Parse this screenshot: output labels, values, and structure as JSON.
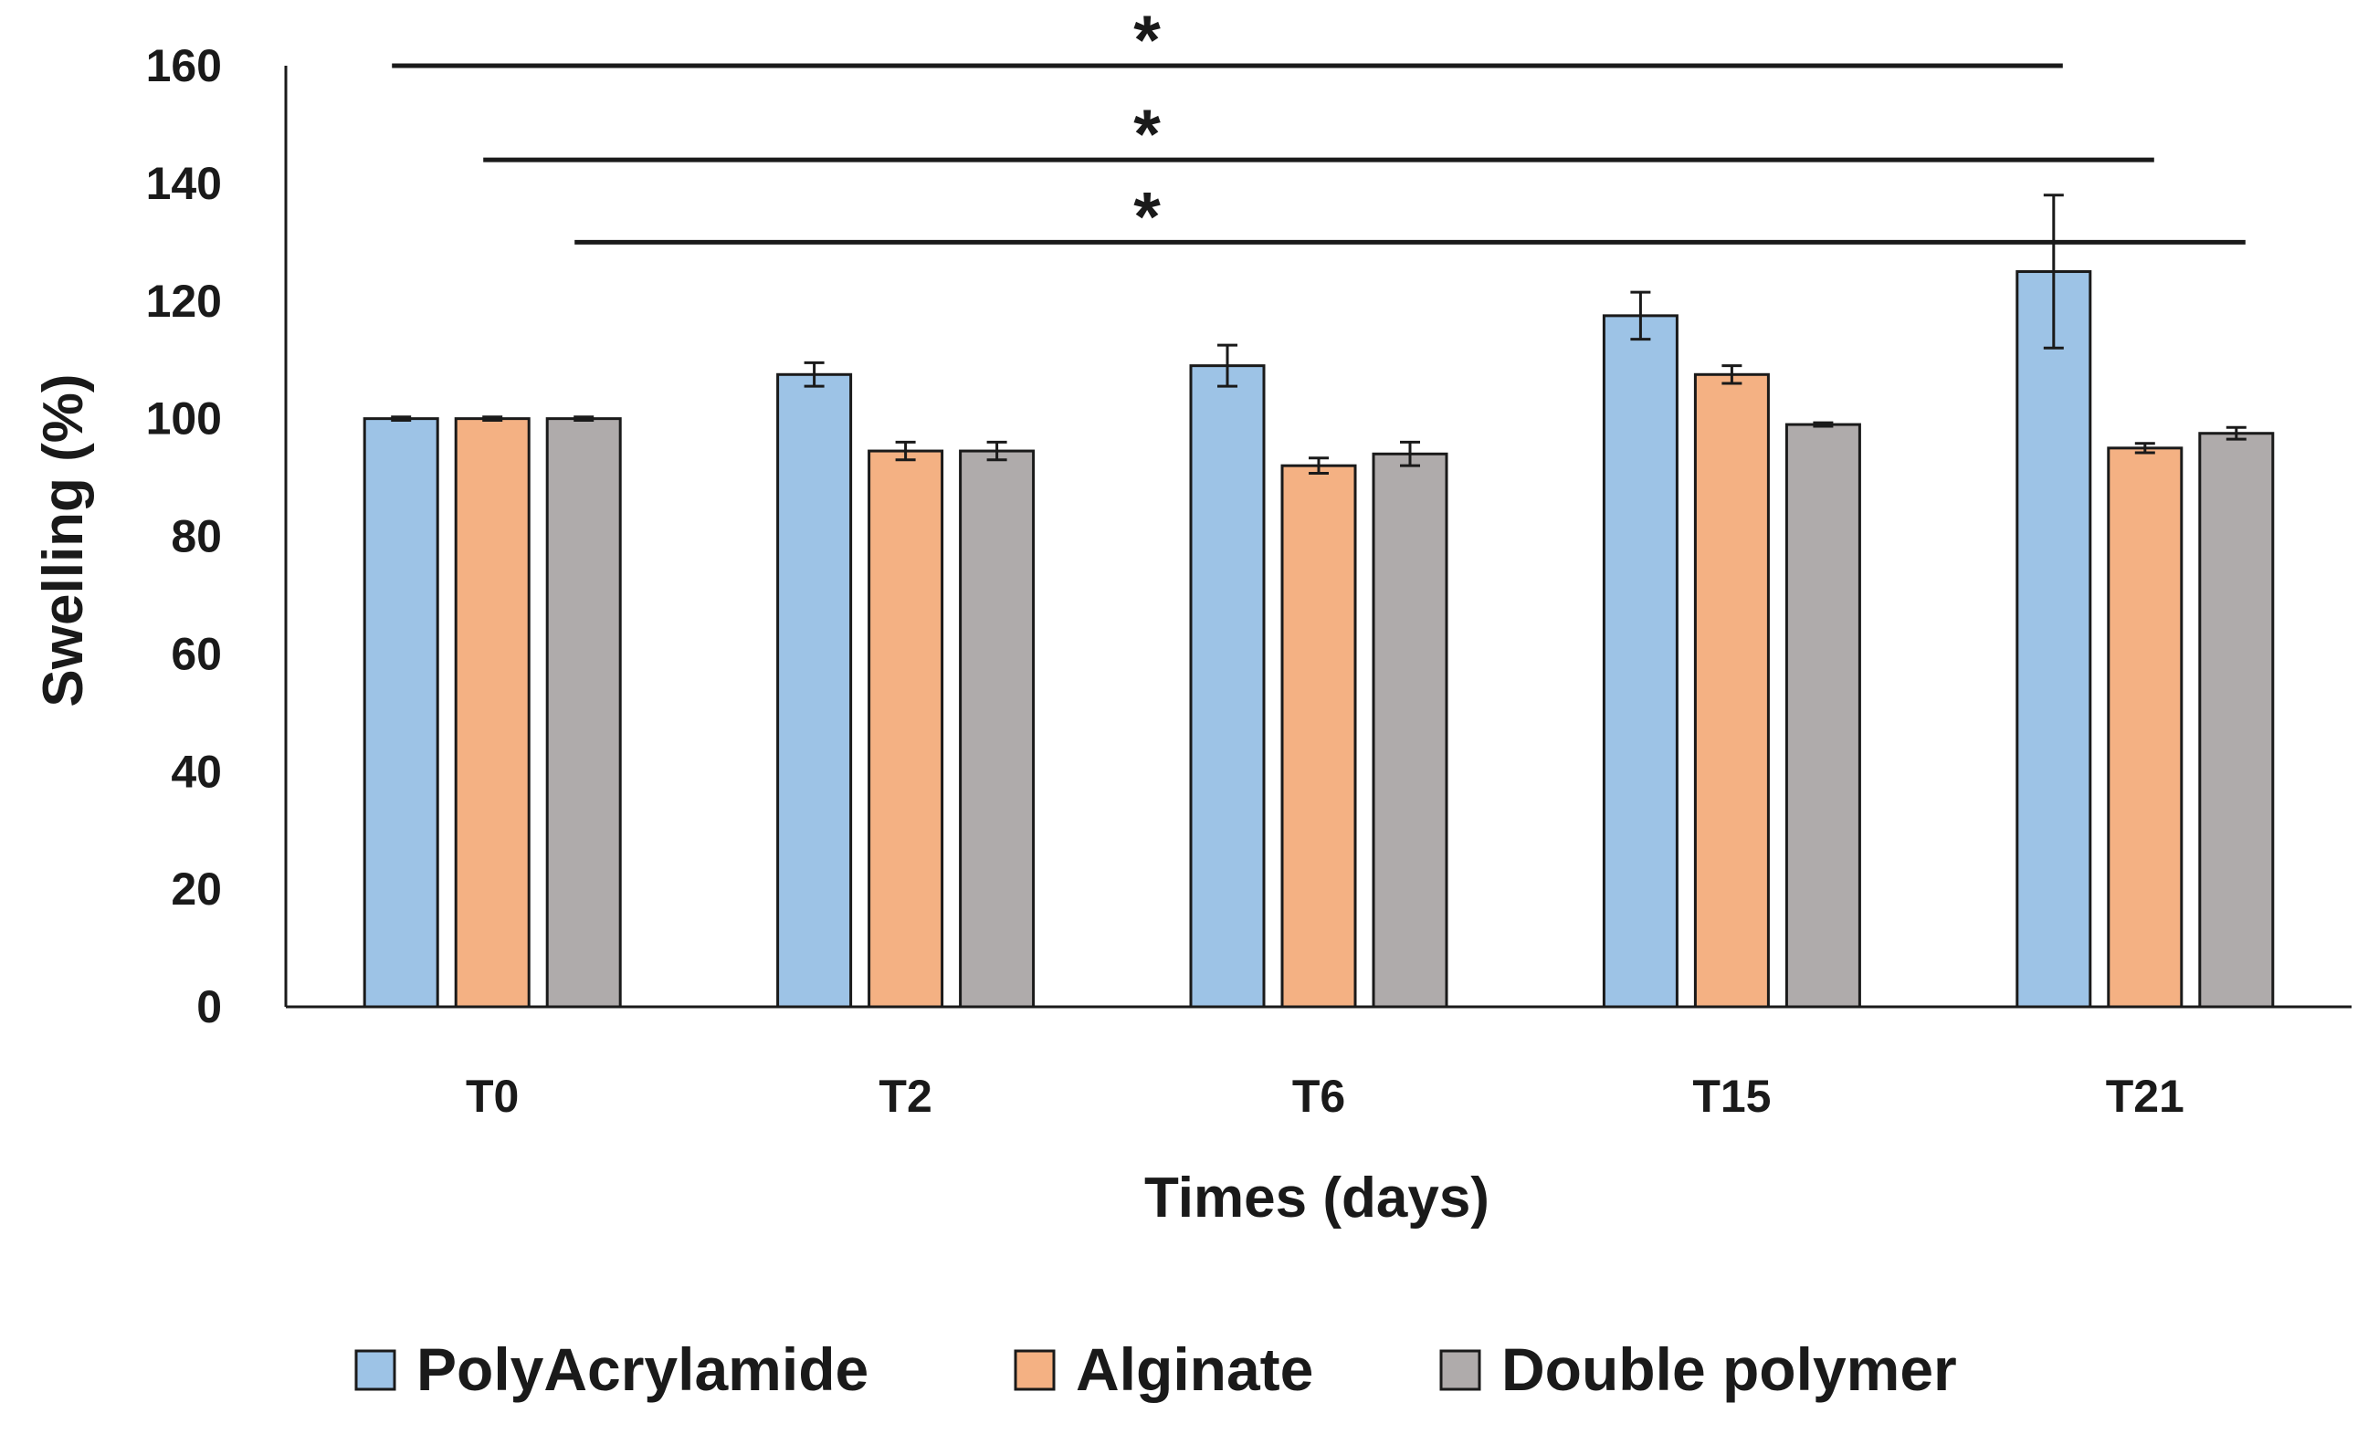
{
  "chart_data": {
    "type": "bar",
    "title": "",
    "xlabel": "Times (days)",
    "ylabel": "Swelling (%)",
    "ylim": [
      0,
      160
    ],
    "yticks": [
      0,
      20,
      40,
      60,
      80,
      100,
      120,
      140,
      160
    ],
    "grid": false,
    "legend_position": "bottom",
    "categories": [
      "T0",
      "T2",
      "T6",
      "T15",
      "T21"
    ],
    "series": [
      {
        "name": "PolyAcrylamide",
        "color": "#9dc3e6",
        "values": [
          100,
          107.5,
          109,
          117.5,
          125
        ],
        "errors": [
          0.3,
          2,
          3.5,
          4,
          13
        ]
      },
      {
        "name": "Alginate",
        "color": "#f4b183",
        "values": [
          100,
          94.5,
          92,
          107.5,
          95
        ],
        "errors": [
          0.3,
          1.5,
          1.3,
          1.5,
          0.8
        ]
      },
      {
        "name": "Double polymer",
        "color": "#afabab",
        "values": [
          100,
          94.5,
          94,
          99,
          97.5
        ],
        "errors": [
          0.3,
          1.5,
          2,
          0.3,
          1
        ]
      }
    ],
    "significance": [
      {
        "label": "*",
        "from": "T0 PolyAcrylamide",
        "to": "T21 PolyAcrylamide",
        "y": 160
      },
      {
        "label": "*",
        "from": "T0 Alginate",
        "to": "T21 Alginate",
        "y": 144
      },
      {
        "label": "*",
        "from": "T0 Double polymer",
        "to": "T21 Double polymer",
        "y": 130
      }
    ]
  }
}
